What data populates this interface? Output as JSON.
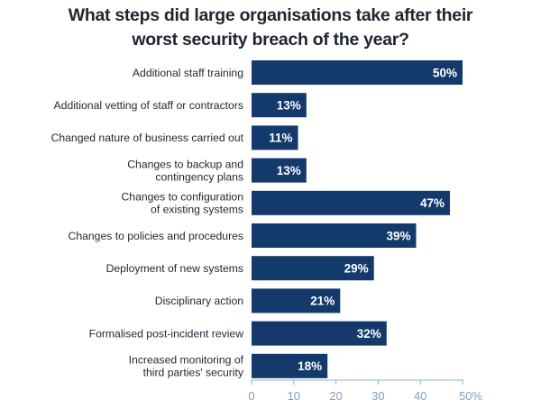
{
  "chart_data": {
    "type": "bar",
    "orientation": "horizontal",
    "title_lines": [
      "What steps did large organisations take after their",
      "worst security breach of the year?"
    ],
    "categories": [
      [
        "Additional staff training"
      ],
      [
        "Additional vetting of staff or contractors"
      ],
      [
        "Changed nature of business carried out"
      ],
      [
        "Changes to backup and",
        "contingency plans"
      ],
      [
        "Changes to configuration",
        "of existing systems"
      ],
      [
        "Changes to policies and procedures"
      ],
      [
        "Deployment of new systems"
      ],
      [
        "Disciplinary action"
      ],
      [
        "Formalised post-incident review"
      ],
      [
        "Increased monitoring of",
        "third parties' security"
      ]
    ],
    "values": [
      50,
      13,
      11,
      13,
      47,
      39,
      29,
      21,
      32,
      18
    ],
    "value_labels": [
      "50%",
      "13%",
      "11%",
      "13%",
      "47%",
      "39%",
      "29%",
      "21%",
      "32%",
      "18%"
    ],
    "x_ticks": [
      0,
      10,
      20,
      30,
      40,
      50
    ],
    "x_tick_labels": [
      "0",
      "10",
      "20",
      "30",
      "40",
      "50%"
    ],
    "xlim": [
      0,
      50
    ],
    "grid": false,
    "colors": {
      "bar": "#143a6b",
      "value_text": "#ffffff",
      "tick_text": "#7c9fc4",
      "axis": "#8fb0d4",
      "label_text": "#1f2530"
    }
  }
}
